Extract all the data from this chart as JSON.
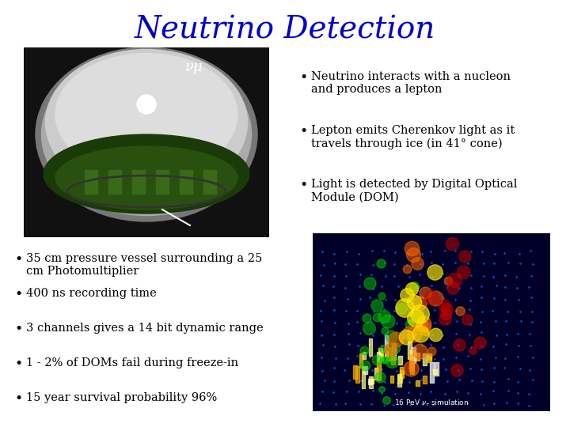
{
  "title": "Neutrino Detection",
  "title_color": "#0000CC",
  "title_fontsize": 28,
  "background_color": "#FFFFFF",
  "bullet_color": "#000000",
  "bullet_fontsize": 10.5,
  "top_right_bullets": [
    "Neutrino interacts with a nucleon\nand produces a lepton",
    "Lepton emits Cherenkov light as it\ntravels through ice (in 41° cone)",
    "Light is detected by Digital Optical\nModule (DOM)"
  ],
  "bottom_bullets": [
    "35 cm pressure vessel surrounding a 25\ncm Photomultiplier",
    "400 ns recording time",
    "3 channels gives a 14 bit dynamic range",
    "1 - 2% of DOMs fail during freeze-in",
    "15 year survival probability 96%"
  ],
  "nu_mu_label": "νμ"
}
